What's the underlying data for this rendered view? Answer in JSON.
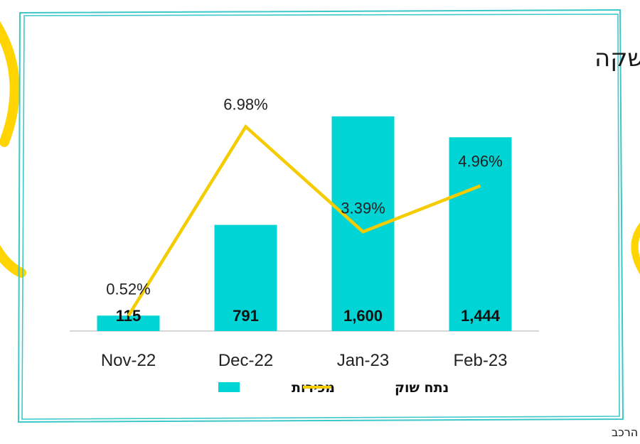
{
  "colors": {
    "frame": "#3cc8c8",
    "bar": "#00d4d4",
    "line": "#f5cc00",
    "axis": "#cccccc",
    "accent": "#ffd400"
  },
  "chart_data": {
    "type": "bar",
    "title": "מכירות מאז ההשקה",
    "categories": [
      "Nov-22",
      "Dec-22",
      "Jan-23",
      "Feb-23"
    ],
    "series": [
      {
        "name": "מכירות",
        "type": "bar",
        "values": [
          115,
          791,
          1600,
          1444
        ],
        "labels": [
          "115",
          "791",
          "1,600",
          "1,444"
        ]
      },
      {
        "name": "נתח שוק",
        "type": "line",
        "values": [
          0.52,
          6.98,
          3.39,
          4.96
        ],
        "labels": [
          "0.52%",
          "6.98%",
          "3.39%",
          "4.96%"
        ]
      }
    ],
    "bar_ylim": [
      0,
      1800
    ],
    "line_ylim": [
      0,
      8.2
    ],
    "legend_position": "bottom"
  },
  "footnote": "* עפ\"י נתוני איגוד יבואני הרכב"
}
